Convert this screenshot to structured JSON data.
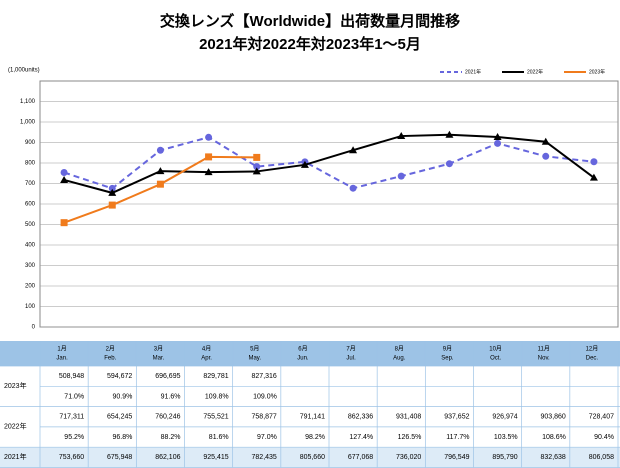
{
  "chart_data": {
    "type": "line",
    "title": "交換レンズ【Worldwide】出荷数量月間推移",
    "subtitle": "2021年対2022年対2023年1～5月",
    "y_axis_label": "(1,000units)",
    "categories": [
      "1月",
      "2月",
      "3月",
      "4月",
      "5月",
      "6月",
      "7月",
      "8月",
      "9月",
      "10月",
      "11月",
      "12月"
    ],
    "categories_en": [
      "Jan.",
      "Feb.",
      "Mar.",
      "Apr.",
      "May.",
      "Jun.",
      "Jul.",
      "Aug.",
      "Sep.",
      "Oct.",
      "Nov.",
      "Dec."
    ],
    "ylim": [
      0,
      1200
    ],
    "yticks": [
      0,
      100,
      200,
      300,
      400,
      500,
      600,
      700,
      800,
      900,
      {
        "value": 1000,
        "label": "1,000"
      },
      {
        "value": 1100,
        "label": "1,100"
      }
    ],
    "grid": true,
    "legend": "top-right",
    "series": [
      {
        "name": "2021年",
        "color": "#6666dd",
        "dash": true,
        "marker": "circle",
        "values": [
          753.66,
          675.948,
          862.106,
          925.415,
          782.435,
          805.66,
          677.068,
          736.02,
          796.549,
          895.79,
          832.638,
          806.058
        ],
        "value_labels": [
          "753,660",
          "675,948",
          "862,106",
          "925,415",
          "782,435",
          "805,660",
          "677,068",
          "736,020",
          "796,549",
          "895,790",
          "832,638",
          "806,058"
        ],
        "ratios": [
          null,
          null,
          null,
          null,
          null,
          null,
          null,
          null,
          null,
          null,
          null,
          null
        ]
      },
      {
        "name": "2022年",
        "color": "#000000",
        "dash": false,
        "marker": "triangle",
        "values": [
          717.311,
          654.245,
          760.246,
          755.521,
          758.877,
          791.141,
          862.336,
          931.408,
          937.652,
          926.974,
          903.86,
          728.407
        ],
        "value_labels": [
          "717,311",
          "654,245",
          "760,246",
          "755,521",
          "758,877",
          "791,141",
          "862,336",
          "931,408",
          "937,652",
          "926,974",
          "903,860",
          "728,407"
        ],
        "ratios": [
          "95.2%",
          "96.8%",
          "88.2%",
          "81.6%",
          "97.0%",
          "98.2%",
          "127.4%",
          "126.5%",
          "117.7%",
          "103.5%",
          "108.6%",
          "90.4%"
        ]
      },
      {
        "name": "2023年",
        "color": "#f07b1c",
        "dash": false,
        "marker": "square",
        "values": [
          508.948,
          594.672,
          696.695,
          829.781,
          827.316,
          null,
          null,
          null,
          null,
          null,
          null,
          null
        ],
        "value_labels": [
          "508,948",
          "594,672",
          "696,695",
          "829,781",
          "827,316",
          null,
          null,
          null,
          null,
          null,
          null,
          null
        ],
        "ratios": [
          "71.0%",
          "90.9%",
          "91.6%",
          "109.8%",
          "109.0%",
          null,
          null,
          null,
          null,
          null,
          null,
          null
        ]
      }
    ]
  }
}
